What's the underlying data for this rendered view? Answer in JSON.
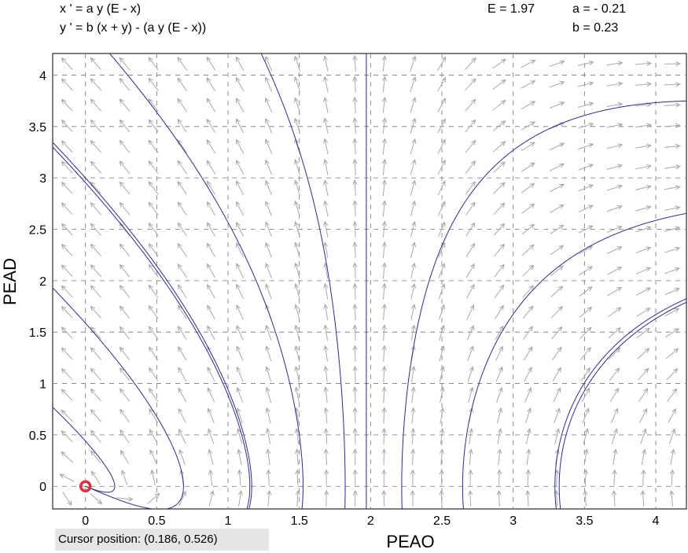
{
  "chart_data": {
    "type": "phase-plane",
    "equations": [
      "x ' = a y (E - x)",
      "y ' = b (x + y) - (a y (E - x))"
    ],
    "parameters": [
      {
        "value": 1.97,
        "label": "E = 1.97"
      },
      {
        "value": -0.21,
        "label": "a = - 0.21"
      },
      {
        "value": 0.23,
        "label": "b = 0.23"
      }
    ],
    "xlabel": "PEAO",
    "ylabel": "PEAD",
    "xlim": [
      -0.23,
      4.215
    ],
    "ylim": [
      -0.22,
      4.21
    ],
    "xticks": [
      0,
      0.5,
      1,
      1.5,
      2,
      2.5,
      3,
      3.5,
      4
    ],
    "yticks": [
      0,
      0.5,
      1,
      1.5,
      2,
      2.5,
      3,
      3.5,
      4
    ],
    "grid": true,
    "trajectory_color": "#2b2b8f",
    "arrow_color": "#a8a8a8",
    "trajectory_starts": [
      [
        -0.23,
        3.3
      ],
      [
        -0.23,
        1.93
      ],
      [
        -0.23,
        0.77
      ],
      [
        1.15,
        -0.2
      ],
      [
        1.52,
        -0.2
      ],
      [
        1.82,
        -0.2
      ],
      [
        1.97,
        -0.2
      ],
      [
        2.22,
        -0.2
      ],
      [
        2.65,
        -0.2
      ],
      [
        3.3,
        -0.2
      ],
      [
        3.33,
        -0.2
      ]
    ],
    "equilibrium": {
      "x": 0,
      "y": 0,
      "color": "#e0303a"
    },
    "status": "Cursor position:  (0.186, 0.526)"
  }
}
